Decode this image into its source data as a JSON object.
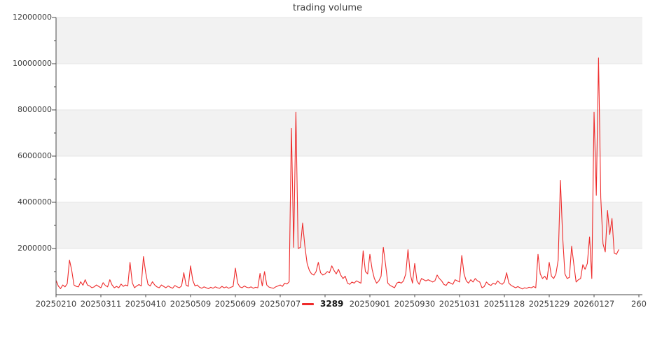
{
  "title": "trading volume",
  "colors": {
    "line": "#ee2b2b",
    "band": "#f2f2f2",
    "grid": "#e4e4e4",
    "axis": "#4a4a4a",
    "tick_text": "#3c3c3c",
    "background": "#ffffff"
  },
  "legend": {
    "marker": "red-line-dash"
  },
  "y_axis": {
    "min": 0,
    "max": 12000000,
    "major_step": 2000000,
    "minor_step": 1000000,
    "tick_labels": [
      "2000000",
      "4000000",
      "6000000",
      "8000000",
      "10000000",
      "12000000"
    ]
  },
  "x_axis": {
    "tick_labels": [
      "20250210",
      "20250311",
      "20250410",
      "20250509",
      "20250609",
      "20250707",
      "",
      "20250901",
      "20250930",
      "20251031",
      "20251128",
      "20251229",
      "20260127",
      "260"
    ],
    "legend_slot": 6,
    "points_per_tick": 20
  },
  "chart_data": {
    "type": "line",
    "title": "trading volume",
    "xlabel": "",
    "ylabel": "",
    "ylim": [
      0,
      12000000
    ],
    "grid": "horizontal-bands-alternating",
    "legend_position": "bottom-center-inline-with-x-labels",
    "x_tick_labels": [
      "20250210",
      "20250311",
      "20250410",
      "20250509",
      "20250609",
      "20250707",
      "",
      "20250901",
      "20250930",
      "20251031",
      "20251128",
      "20251229",
      "20260127",
      "260"
    ],
    "points_per_tick": 20,
    "series": [
      {
        "name": "3289",
        "color": "#ee2b2b",
        "values": [
          620000,
          380000,
          260000,
          420000,
          340000,
          480000,
          1500000,
          1050000,
          420000,
          360000,
          340000,
          560000,
          410000,
          650000,
          420000,
          380000,
          300000,
          340000,
          420000,
          360000,
          300000,
          520000,
          400000,
          340000,
          650000,
          420000,
          300000,
          360000,
          300000,
          460000,
          360000,
          420000,
          380000,
          1400000,
          520000,
          300000,
          380000,
          440000,
          380000,
          1650000,
          950000,
          450000,
          380000,
          560000,
          420000,
          340000,
          300000,
          420000,
          360000,
          300000,
          380000,
          320000,
          280000,
          400000,
          340000,
          300000,
          380000,
          950000,
          420000,
          360000,
          1250000,
          620000,
          380000,
          420000,
          320000,
          280000,
          340000,
          300000,
          260000,
          320000,
          280000,
          340000,
          300000,
          280000,
          360000,
          300000,
          340000,
          280000,
          320000,
          360000,
          1150000,
          500000,
          340000,
          300000,
          380000,
          320000,
          300000,
          340000,
          280000,
          320000,
          300000,
          920000,
          380000,
          1000000,
          420000,
          330000,
          300000,
          280000,
          340000,
          380000,
          420000,
          360000,
          500000,
          460000,
          560000,
          7200000,
          2050000,
          7900000,
          2000000,
          2050000,
          3100000,
          2100000,
          1350000,
          1050000,
          900000,
          850000,
          1000000,
          1400000,
          950000,
          850000,
          900000,
          1000000,
          950000,
          1250000,
          1050000,
          900000,
          1100000,
          850000,
          700000,
          800000,
          500000,
          450000,
          550000,
          500000,
          600000,
          550000,
          500000,
          1900000,
          1000000,
          900000,
          1750000,
          1100000,
          700000,
          500000,
          600000,
          800000,
          2050000,
          1300000,
          500000,
          400000,
          350000,
          300000,
          500000,
          550000,
          500000,
          600000,
          900000,
          1950000,
          900000,
          500000,
          1350000,
          600000,
          450000,
          700000,
          650000,
          600000,
          650000,
          600000,
          550000,
          600000,
          850000,
          700000,
          600000,
          450000,
          400000,
          550000,
          500000,
          450000,
          650000,
          600000,
          550000,
          1700000,
          900000,
          600000,
          500000,
          650000,
          550000,
          700000,
          600000,
          550000,
          300000,
          350000,
          550000,
          450000,
          400000,
          500000,
          450000,
          600000,
          500000,
          450000,
          550000,
          950000,
          500000,
          400000,
          350000,
          300000,
          350000,
          300000,
          250000,
          300000,
          280000,
          320000,
          300000,
          350000,
          300000,
          1750000,
          900000,
          700000,
          800000,
          650000,
          1400000,
          800000,
          700000,
          900000,
          1500000,
          4950000,
          2500000,
          900000,
          700000,
          750000,
          2100000,
          1300000,
          550000,
          650000,
          700000,
          1300000,
          1100000,
          1350000,
          2500000,
          700000,
          7900000,
          4300000,
          10250000,
          4200000,
          2200000,
          1850000,
          3650000,
          2600000,
          3300000,
          1800000,
          1750000,
          1950000
        ]
      }
    ]
  }
}
